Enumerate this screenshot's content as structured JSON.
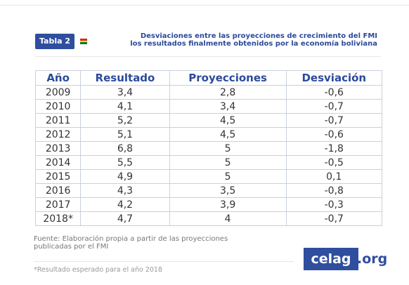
{
  "header": {
    "badge": "Tabla 2",
    "title": [
      "Desviaciones entre las proyecciones de crecimiento del FMI",
      "los resultados finalmente obtenidos por la economía boliviana"
    ]
  },
  "table": {
    "columns": [
      "Año",
      "Resultado",
      "Proyecciones",
      "Desviación"
    ],
    "rows": [
      [
        "2009",
        "3,4",
        "2,8",
        "-0,6"
      ],
      [
        "2010",
        "4,1",
        "3,4",
        "-0,7"
      ],
      [
        "2011",
        "5,2",
        "4,5",
        "-0,7"
      ],
      [
        "2012",
        "5,1",
        "4,5",
        "-0,6"
      ],
      [
        "2013",
        "6,8",
        "5",
        "-1,8"
      ],
      [
        "2014",
        "5,5",
        "5",
        "-0,5"
      ],
      [
        "2015",
        "4,9",
        "5",
        "0,1"
      ],
      [
        "2016",
        "4,3",
        "3,5",
        "-0,8"
      ],
      [
        "2017",
        "4,2",
        "3,9",
        "-0,3"
      ],
      [
        "2018*",
        "4,7",
        "4",
        "-0,7"
      ]
    ]
  },
  "footer": {
    "source": [
      "Fuente: Elaboración propia a partir de las proyecciones",
      "publicadas por el FMI"
    ],
    "note": "*Resultado esperado para el año 2018",
    "logo": [
      "celag",
      ".org"
    ]
  }
}
